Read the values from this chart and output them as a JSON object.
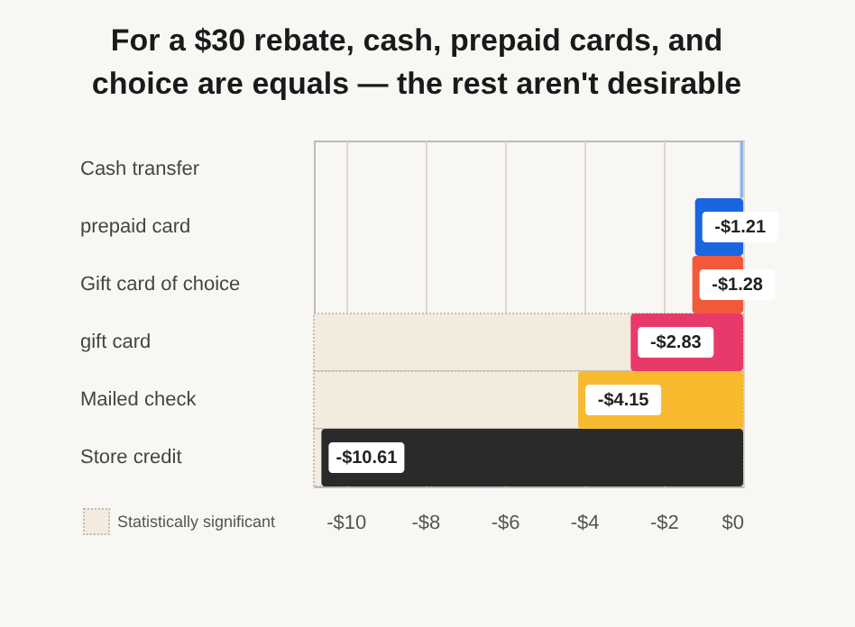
{
  "chart_data": {
    "type": "bar",
    "orientation": "horizontal",
    "title": "For a $30 rebate, cash, prepaid cards, and choice are equals — the rest aren't desirable",
    "categories": [
      "Cash transfer",
      "prepaid card",
      "Gift card of choice",
      "gift card",
      "Mailed check",
      "Store credit"
    ],
    "values": [
      -0.08,
      -1.21,
      -1.28,
      -2.83,
      -4.15,
      -10.61
    ],
    "value_labels": [
      null,
      "-$1.21",
      "-$1.28",
      "-$2.83",
      "-$4.15",
      "-$10.61"
    ],
    "colors": [
      "#8fb4e6",
      "#1a66e0",
      "#f05a3a",
      "#e83a6a",
      "#f7b92e",
      "#2a2a2a"
    ],
    "xlim": [
      -10.8,
      0
    ],
    "xticks": [
      {
        "value": -10,
        "label": "-$10"
      },
      {
        "value": -8,
        "label": "-$8"
      },
      {
        "value": -6,
        "label": "-$6"
      },
      {
        "value": -4,
        "label": "-$4"
      },
      {
        "value": -2,
        "label": "-$2"
      },
      {
        "value": 0,
        "label": "$0"
      }
    ],
    "grid": "x",
    "bands": [
      {
        "axis": "y",
        "from": "gift card",
        "to": "Store credit",
        "label": "Statistically significant",
        "color": "#f3ebde"
      }
    ],
    "legend": "bottom left"
  }
}
